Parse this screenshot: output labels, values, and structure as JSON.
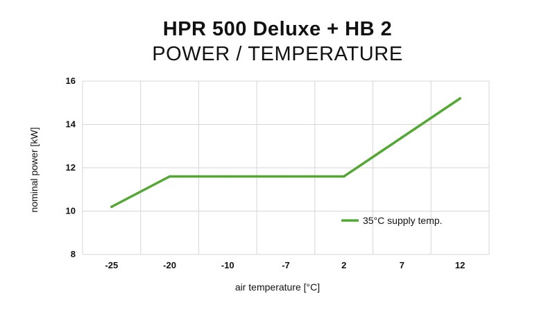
{
  "chart_data": {
    "type": "line",
    "title": "HPR 500 Deluxe + HB 2",
    "subtitle": "POWER / TEMPERATURE",
    "xlabel": "air temperature [°C]",
    "ylabel": "nominal power [kW]",
    "categories": [
      "-25",
      "-20",
      "-10",
      "-7",
      "2",
      "7",
      "12"
    ],
    "ylim": [
      8,
      16
    ],
    "yticks": [
      8,
      10,
      12,
      14,
      16
    ],
    "grid": true,
    "legend_position": "bottom-right",
    "series": [
      {
        "name": "35°C supply temp.",
        "color": "#52a833",
        "values": [
          10.2,
          11.6,
          11.6,
          11.6,
          11.6,
          13.4,
          15.2
        ]
      }
    ]
  }
}
